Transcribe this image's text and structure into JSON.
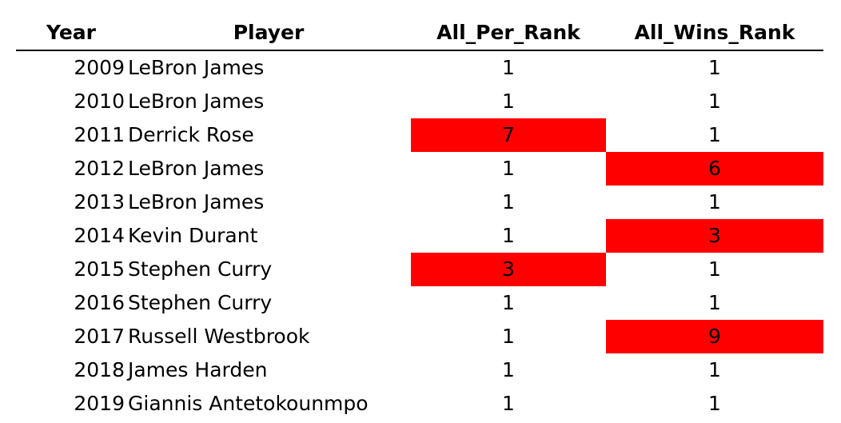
{
  "table": {
    "headers": {
      "year": "Year",
      "player": "Player",
      "per_rank": "All_Per_Rank",
      "wins_rank": "All_Wins_Rank"
    },
    "highlight_color": "#ff0000",
    "rows": [
      {
        "year": "2009",
        "player": "LeBron James",
        "per_rank": "1",
        "wins_rank": "1",
        "per_highlight": false,
        "wins_highlight": false
      },
      {
        "year": "2010",
        "player": "LeBron James",
        "per_rank": "1",
        "wins_rank": "1",
        "per_highlight": false,
        "wins_highlight": false
      },
      {
        "year": "2011",
        "player": "Derrick Rose",
        "per_rank": "7",
        "wins_rank": "1",
        "per_highlight": true,
        "wins_highlight": false
      },
      {
        "year": "2012",
        "player": "LeBron James",
        "per_rank": "1",
        "wins_rank": "6",
        "per_highlight": false,
        "wins_highlight": true
      },
      {
        "year": "2013",
        "player": "LeBron James",
        "per_rank": "1",
        "wins_rank": "1",
        "per_highlight": false,
        "wins_highlight": false
      },
      {
        "year": "2014",
        "player": "Kevin Durant",
        "per_rank": "1",
        "wins_rank": "3",
        "per_highlight": false,
        "wins_highlight": true
      },
      {
        "year": "2015",
        "player": "Stephen Curry",
        "per_rank": "3",
        "wins_rank": "1",
        "per_highlight": true,
        "wins_highlight": false
      },
      {
        "year": "2016",
        "player": "Stephen Curry",
        "per_rank": "1",
        "wins_rank": "1",
        "per_highlight": false,
        "wins_highlight": false
      },
      {
        "year": "2017",
        "player": "Russell Westbrook",
        "per_rank": "1",
        "wins_rank": "9",
        "per_highlight": false,
        "wins_highlight": true
      },
      {
        "year": "2018",
        "player": "James Harden",
        "per_rank": "1",
        "wins_rank": "1",
        "per_highlight": false,
        "wins_highlight": false
      },
      {
        "year": "2019",
        "player": "Giannis Antetokounmpo",
        "per_rank": "1",
        "wins_rank": "1",
        "per_highlight": false,
        "wins_highlight": false
      }
    ]
  }
}
